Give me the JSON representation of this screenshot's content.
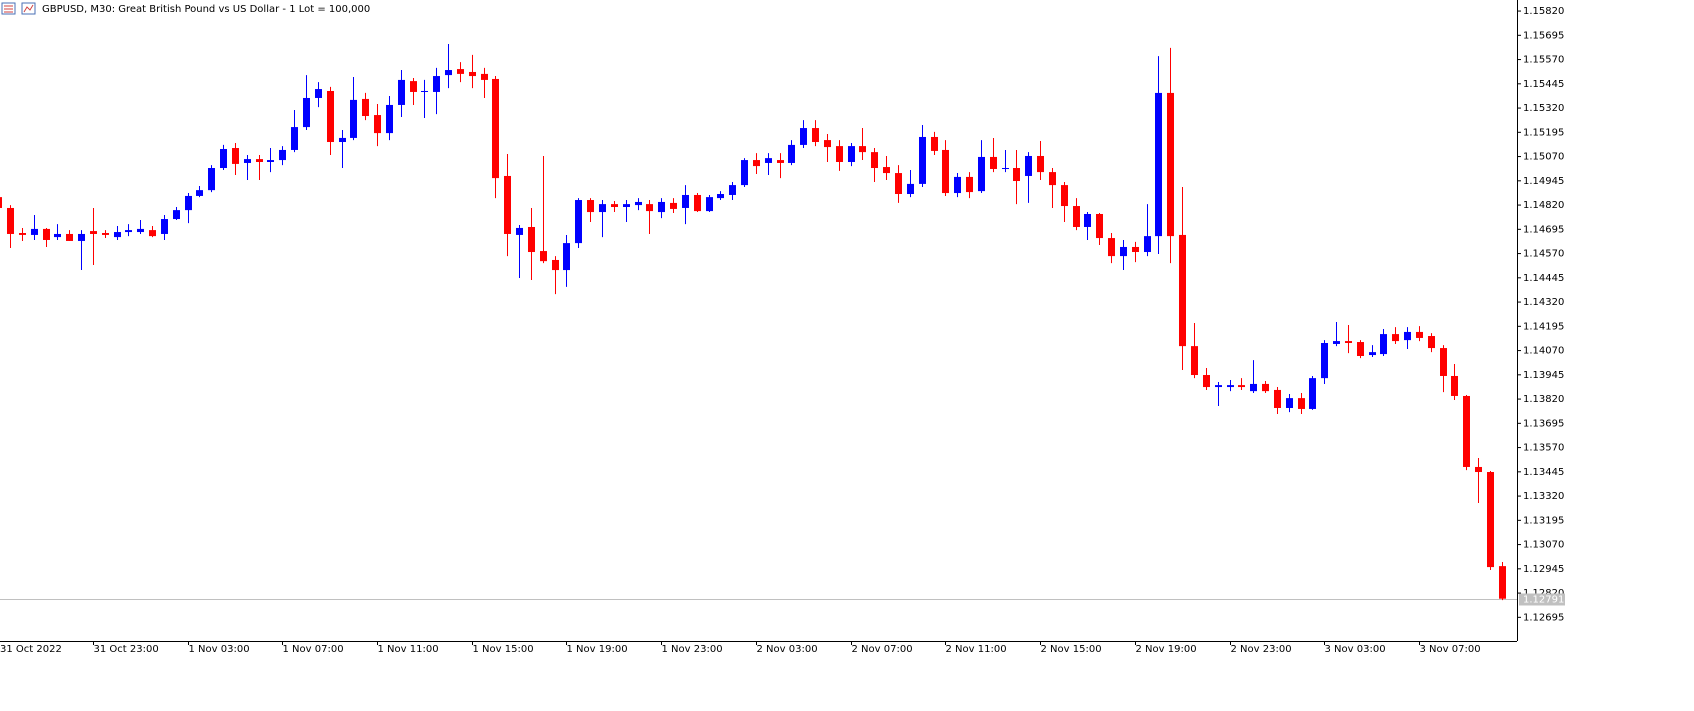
{
  "chart_data": {
    "type": "candlestick",
    "title": "GBPUSD, M30:  Great British Pound vs US Dollar - 1 Lot = 100,000",
    "up_color": "#0000ff",
    "down_color": "#ff0000",
    "categories": [
      "31 Oct 2022",
      null,
      null,
      null,
      null,
      null,
      null,
      null,
      "31 Oct 23:00",
      null,
      null,
      null,
      null,
      null,
      null,
      null,
      "1 Nov 03:00",
      null,
      null,
      null,
      null,
      null,
      null,
      null,
      "1 Nov 07:00",
      null,
      null,
      null,
      null,
      null,
      null,
      null,
      "1 Nov 11:00",
      null,
      null,
      null,
      null,
      null,
      null,
      null,
      "1 Nov 15:00",
      null,
      null,
      null,
      null,
      null,
      null,
      null,
      "1 Nov 19:00",
      null,
      null,
      null,
      null,
      null,
      null,
      null,
      "1 Nov 23:00",
      null,
      null,
      null,
      null,
      null,
      null,
      null,
      "2 Nov 03:00",
      null,
      null,
      null,
      null,
      null,
      null,
      null,
      "2 Nov 07:00",
      null,
      null,
      null,
      null,
      null,
      null,
      null,
      "2 Nov 11:00",
      null,
      null,
      null,
      null,
      null,
      null,
      null,
      "2 Nov 15:00",
      null,
      null,
      null,
      null,
      null,
      null,
      null,
      "2 Nov 19:00",
      null,
      null,
      null,
      null,
      null,
      null,
      null,
      "2 Nov 23:00",
      null,
      null,
      null,
      null,
      null,
      null,
      null,
      "3 Nov 03:00",
      null,
      null,
      null,
      null,
      null,
      null,
      null,
      "3 Nov 07:00",
      null,
      null,
      null,
      null,
      null,
      null,
      null
    ],
    "open": [
      1.14861,
      1.14805,
      1.14676,
      1.14666,
      1.14697,
      1.14655,
      1.14671,
      1.14635,
      1.14686,
      1.14676,
      1.14655,
      1.14681,
      1.14681,
      1.14691,
      1.14671,
      1.14748,
      1.14794,
      1.14867,
      1.14897,
      1.15011,
      1.15114,
      1.15037,
      1.15057,
      1.15042,
      1.15052,
      1.15104,
      1.15222,
      1.15372,
      1.15408,
      1.15145,
      1.15166,
      1.15367,
      1.15284,
      1.15191,
      1.15336,
      1.15459,
      1.15403,
      1.15403,
      1.1549,
      1.15521,
      1.15506,
      1.15496,
      1.1547,
      1.1497,
      1.14666,
      1.14707,
      1.14583,
      1.14537,
      1.14485,
      1.14624,
      1.14846,
      1.14784,
      1.14825,
      1.1481,
      1.1482,
      1.14825,
      1.14784,
      1.14831,
      1.14805,
      1.14872,
      1.14789,
      1.14856,
      1.14872,
      1.14923,
      1.15052,
      1.15037,
      1.15052,
      1.15037,
      1.1513,
      1.15217,
      1.15155,
      1.15124,
      1.15042,
      1.15124,
      1.15093,
      1.15016,
      1.14985,
      1.14877,
      1.14929,
      1.15171,
      1.15104,
      1.14882,
      1.14965,
      1.14892,
      1.15068,
      1.15006,
      1.15011,
      1.1497,
      1.15073,
      1.1499,
      1.14923,
      1.14815,
      1.14707,
      1.14774,
      1.1465,
      1.14557,
      1.14604,
      1.14578,
      1.1466,
      1.15398,
      1.14666,
      1.14093,
      1.13944,
      1.13882,
      1.13882,
      1.13892,
      1.13861,
      1.13898,
      1.13867,
      1.13774,
      1.13825,
      1.13769,
      1.13928,
      1.14104,
      1.14119,
      1.14114,
      1.14047,
      1.14052,
      1.14155,
      1.14124,
      1.14166,
      1.14145,
      1.14083,
      1.13939,
      1.13836,
      1.1347,
      1.13444,
      1.12959
    ],
    "high": [
      1.14897,
      1.1482,
      1.14702,
      1.14769,
      1.14702,
      1.14722,
      1.14691,
      1.14691,
      1.14805,
      1.14691,
      1.14712,
      1.14722,
      1.14743,
      1.14712,
      1.14769,
      1.1481,
      1.14882,
      1.14918,
      1.15026,
      1.1513,
      1.1514,
      1.15078,
      1.15078,
      1.15114,
      1.15124,
      1.1531,
      1.1549,
      1.15454,
      1.15429,
      1.15207,
      1.1548,
      1.15398,
      1.15341,
      1.15382,
      1.15516,
      1.15475,
      1.15465,
      1.15527,
      1.1565,
      1.15557,
      1.15594,
      1.15527,
      1.15485,
      1.15083,
      1.14717,
      1.14805,
      1.15073,
      1.14557,
      1.14666,
      1.14856,
      1.14856,
      1.14846,
      1.14841,
      1.14846,
      1.14856,
      1.14846,
      1.14856,
      1.14856,
      1.14923,
      1.14882,
      1.14872,
      1.14892,
      1.14939,
      1.15062,
      1.15088,
      1.15088,
      1.15088,
      1.15155,
      1.15258,
      1.15258,
      1.15186,
      1.15155,
      1.1514,
      1.15217,
      1.15114,
      1.15073,
      1.15026,
      1.15001,
      1.15233,
      1.15197,
      1.15155,
      1.14985,
      1.1499,
      1.15155,
      1.15166,
      1.15104,
      1.15104,
      1.15093,
      1.1515,
      1.15011,
      1.14939,
      1.14856,
      1.14784,
      1.14779,
      1.14676,
      1.1464,
      1.1463,
      1.14825,
      1.15588,
      1.1563,
      1.14913,
      1.14212,
      1.1398,
      1.13908,
      1.13918,
      1.13928,
      1.14021,
      1.13913,
      1.13882,
      1.13846,
      1.13851,
      1.13939,
      1.14124,
      1.14217,
      1.14202,
      1.14124,
      1.14098,
      1.14181,
      1.14191,
      1.14191,
      1.14196,
      1.1416,
      1.14098,
      1.14001,
      1.13841,
      1.13516,
      1.13449,
      1.1298
    ],
    "low": [
      1.14794,
      1.14599,
      1.14635,
      1.1464,
      1.14604,
      1.1464,
      1.14635,
      1.14485,
      1.14511,
      1.1465,
      1.1464,
      1.1466,
      1.14671,
      1.14655,
      1.1464,
      1.14743,
      1.14727,
      1.14861,
      1.14887,
      1.15001,
      1.14975,
      1.14949,
      1.14949,
      1.1499,
      1.15026,
      1.15093,
      1.15207,
      1.15325,
      1.15078,
      1.15011,
      1.15155,
      1.15258,
      1.15124,
      1.15155,
      1.15274,
      1.15336,
      1.15269,
      1.15289,
      1.15423,
      1.15454,
      1.15423,
      1.15372,
      1.14856,
      1.14557,
      1.14444,
      1.14434,
      1.14521,
      1.14361,
      1.14398,
      1.14599,
      1.14733,
      1.14655,
      1.14784,
      1.14733,
      1.14794,
      1.14671,
      1.14753,
      1.14779,
      1.14722,
      1.14784,
      1.14784,
      1.14846,
      1.14846,
      1.14913,
      1.1498,
      1.14975,
      1.14959,
      1.15026,
      1.15114,
      1.15124,
      1.15042,
      1.14996,
      1.15021,
      1.15052,
      1.14939,
      1.14949,
      1.14831,
      1.14861,
      1.14913,
      1.15078,
      1.14867,
      1.14861,
      1.14856,
      1.14882,
      1.1499,
      1.1499,
      1.14825,
      1.14831,
      1.14949,
      1.14805,
      1.14733,
      1.14691,
      1.1464,
      1.14614,
      1.14521,
      1.14485,
      1.14526,
      1.14557,
      1.14568,
      1.14521,
      1.1397,
      1.13928,
      1.13867,
      1.13784,
      1.13861,
      1.13867,
      1.13851,
      1.13851,
      1.13743,
      1.13753,
      1.13743,
      1.13764,
      1.13898,
      1.14093,
      1.14057,
      1.14031,
      1.14037,
      1.14042,
      1.14104,
      1.14078,
      1.14119,
      1.14062,
      1.13856,
      1.13815,
      1.13454,
      1.13284,
      1.12939,
      1.12784
    ],
    "close": [
      1.14805,
      1.14671,
      1.14666,
      1.14697,
      1.1464,
      1.14671,
      1.14635,
      1.14671,
      1.14671,
      1.14666,
      1.14681,
      1.14691,
      1.14697,
      1.1466,
      1.14748,
      1.14794,
      1.14867,
      1.14897,
      1.15011,
      1.15109,
      1.15032,
      1.15057,
      1.15042,
      1.15052,
      1.15104,
      1.15222,
      1.15372,
      1.15418,
      1.15145,
      1.15166,
      1.15362,
      1.15279,
      1.15191,
      1.15336,
      1.15465,
      1.15403,
      1.15408,
      1.15485,
      1.15516,
      1.15496,
      1.15485,
      1.15465,
      1.14959,
      1.14671,
      1.14702,
      1.14578,
      1.14531,
      1.14485,
      1.14624,
      1.14846,
      1.14784,
      1.14825,
      1.1481,
      1.14825,
      1.14836,
      1.14789,
      1.14836,
      1.148,
      1.14872,
      1.14789,
      1.14861,
      1.14877,
      1.14923,
      1.15052,
      1.15021,
      1.15062,
      1.15037,
      1.1513,
      1.15217,
      1.15145,
      1.15119,
      1.15042,
      1.15124,
      1.15093,
      1.15011,
      1.14985,
      1.14877,
      1.14929,
      1.15171,
      1.15099,
      1.14882,
      1.14965,
      1.14887,
      1.15068,
      1.15006,
      1.15011,
      1.14944,
      1.15073,
      1.1499,
      1.14923,
      1.14815,
      1.14707,
      1.14774,
      1.1465,
      1.14557,
      1.14604,
      1.14578,
      1.1466,
      1.15398,
      1.1466,
      1.14093,
      1.13944,
      1.13882,
      1.13892,
      1.13892,
      1.13882,
      1.13898,
      1.13861,
      1.13774,
      1.13825,
      1.13769,
      1.13928,
      1.14109,
      1.14119,
      1.14109,
      1.14042,
      1.14062,
      1.14155,
      1.14119,
      1.14166,
      1.14135,
      1.14083,
      1.13939,
      1.13836,
      1.1347,
      1.13444,
      1.12954,
      1.12791
    ],
    "current_price": 1.12791,
    "ylim": [
      1.12573,
      1.15877
    ],
    "yticks": [
      {
        "value": 1.12695,
        "label": "1.12695"
      },
      {
        "value": 1.1282,
        "label": "1.12820"
      },
      {
        "value": 1.12945,
        "label": "1.12945"
      },
      {
        "value": 1.1307,
        "label": "1.13070"
      },
      {
        "value": 1.13195,
        "label": "1.13195"
      },
      {
        "value": 1.1332,
        "label": "1.13320"
      },
      {
        "value": 1.13445,
        "label": "1.13445"
      },
      {
        "value": 1.1357,
        "label": "1.13570"
      },
      {
        "value": 1.13695,
        "label": "1.13695"
      },
      {
        "value": 1.1382,
        "label": "1.13820"
      },
      {
        "value": 1.13945,
        "label": "1.13945"
      },
      {
        "value": 1.1407,
        "label": "1.14070"
      },
      {
        "value": 1.14195,
        "label": "1.14195"
      },
      {
        "value": 1.1432,
        "label": "1.14320"
      },
      {
        "value": 1.14445,
        "label": "1.14445"
      },
      {
        "value": 1.1457,
        "label": "1.14570"
      },
      {
        "value": 1.14695,
        "label": "1.14695"
      },
      {
        "value": 1.1482,
        "label": "1.14820"
      },
      {
        "value": 1.14945,
        "label": "1.14945"
      },
      {
        "value": 1.1507,
        "label": "1.15070"
      },
      {
        "value": 1.15195,
        "label": "1.15195"
      },
      {
        "value": 1.1532,
        "label": "1.15320"
      },
      {
        "value": 1.15445,
        "label": "1.15445"
      },
      {
        "value": 1.1557,
        "label": "1.15570"
      },
      {
        "value": 1.15695,
        "label": "1.15695"
      },
      {
        "value": 1.1582,
        "label": "1.15820"
      }
    ]
  }
}
